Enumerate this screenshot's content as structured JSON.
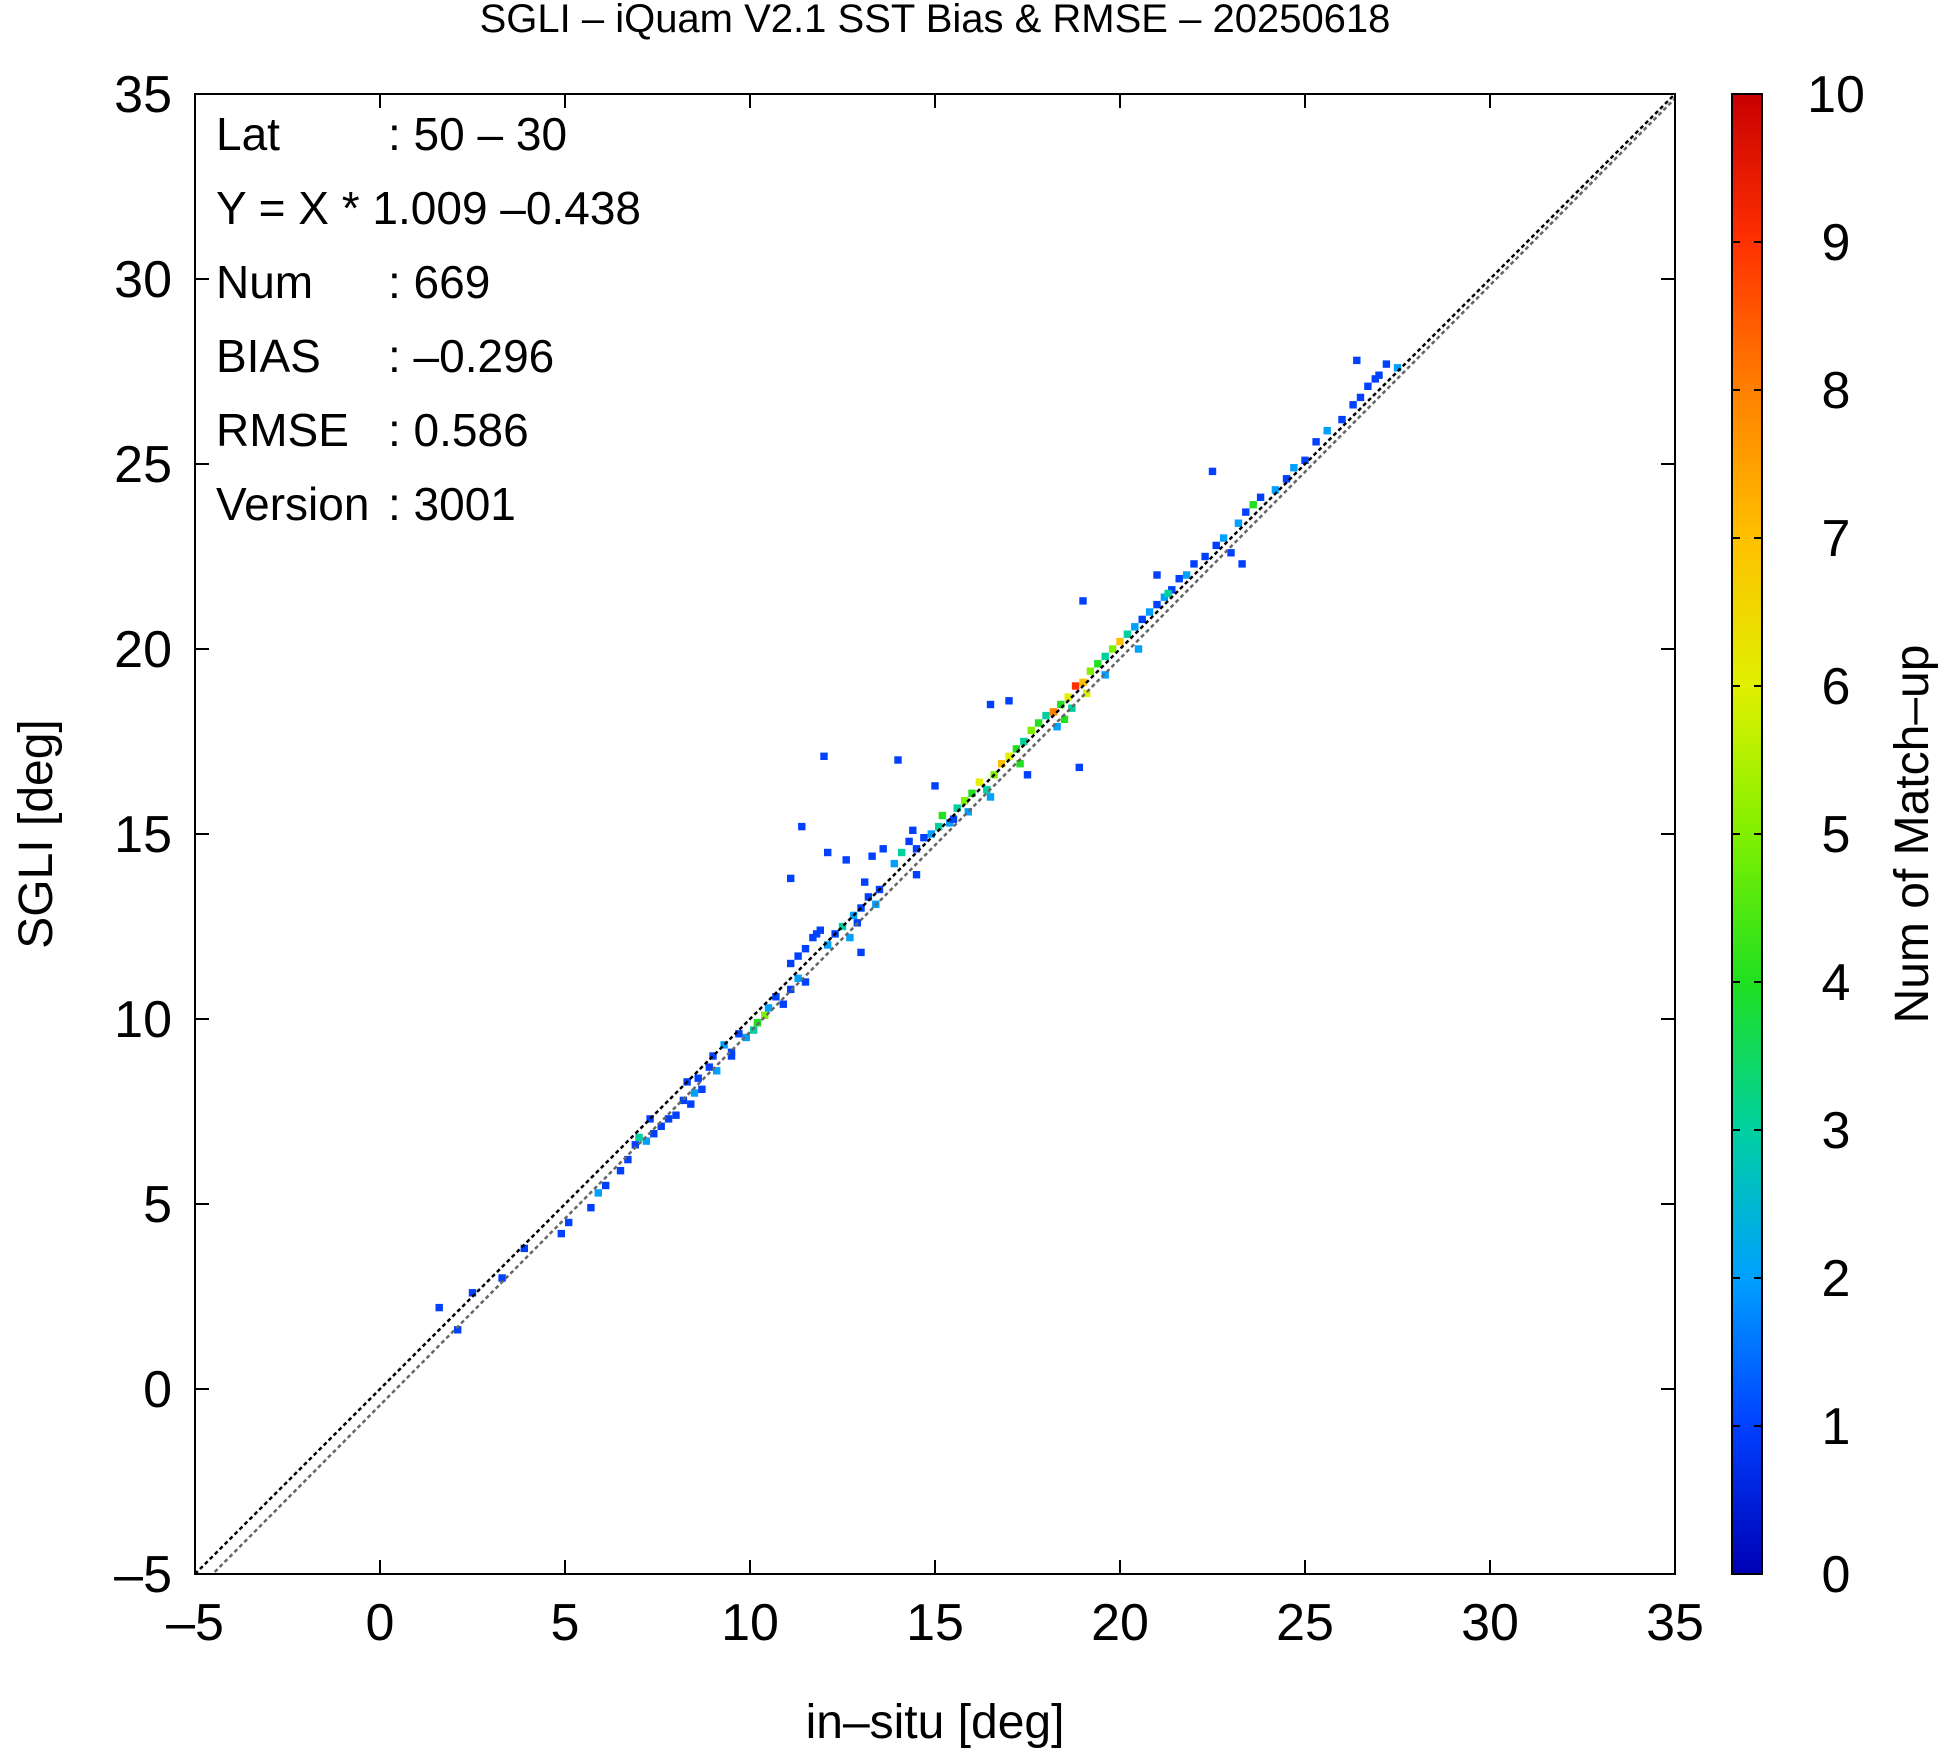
{
  "chart_data": {
    "type": "heatmap",
    "title": "SGLI – iQuam V2.1 SST Bias & RMSE  – 20250618",
    "xlabel": "in–situ [deg]",
    "ylabel": "SGLI [deg]",
    "xlim": [
      -5,
      35
    ],
    "ylim": [
      -5,
      35
    ],
    "xticks": [
      "–5",
      "0",
      "5",
      "10",
      "15",
      "20",
      "25",
      "30",
      "35"
    ],
    "yticks": [
      "–5",
      "0",
      "5",
      "10",
      "15",
      "20",
      "25",
      "30",
      "35"
    ],
    "grid": false,
    "colorbar": {
      "label": "Num of Match–up",
      "range": [
        0,
        10
      ],
      "ticks": [
        "0",
        "1",
        "2",
        "3",
        "4",
        "5",
        "6",
        "7",
        "8",
        "9",
        "10"
      ],
      "colors": [
        "#0000b4",
        "#0040ff",
        "#00a0ff",
        "#00d0a0",
        "#20e020",
        "#80f000",
        "#e0f000",
        "#ffc000",
        "#ff8000",
        "#ff3000",
        "#c80000"
      ]
    },
    "stats": [
      {
        "key": "Lat",
        "value": ": 50 – 30"
      },
      {
        "key": "Y = X * 1.009 –0.438",
        "value": ""
      },
      {
        "key": "Num",
        "value": ": 669"
      },
      {
        "key": "BIAS",
        "value": ": –0.296"
      },
      {
        "key": "RMSE",
        "value": ": 0.586"
      },
      {
        "key": "Version",
        "value": ": 3001"
      }
    ],
    "reference_lines": [
      {
        "slope": 1.0,
        "intercept": 0.0,
        "style": "dotted",
        "color": "#000000"
      },
      {
        "slope": 1.009,
        "intercept": -0.438,
        "style": "dotted",
        "color": "#666666"
      }
    ],
    "cell_size": 0.2,
    "cells": [
      [
        1.6,
        2.2,
        1
      ],
      [
        2.1,
        1.6,
        1
      ],
      [
        2.5,
        2.6,
        1
      ],
      [
        3.3,
        3.0,
        1
      ],
      [
        3.9,
        3.8,
        1
      ],
      [
        4.9,
        4.2,
        1
      ],
      [
        5.1,
        4.5,
        1
      ],
      [
        5.7,
        4.9,
        1
      ],
      [
        5.9,
        5.3,
        2
      ],
      [
        6.1,
        5.5,
        1
      ],
      [
        6.5,
        5.9,
        1
      ],
      [
        6.7,
        6.2,
        1
      ],
      [
        6.9,
        6.6,
        1
      ],
      [
        7.0,
        6.8,
        3
      ],
      [
        7.2,
        6.7,
        2
      ],
      [
        7.4,
        6.9,
        1
      ],
      [
        7.6,
        7.1,
        1
      ],
      [
        7.8,
        7.3,
        1
      ],
      [
        8.0,
        7.4,
        1
      ],
      [
        8.2,
        7.8,
        1
      ],
      [
        8.4,
        7.7,
        1
      ],
      [
        8.5,
        8.0,
        2
      ],
      [
        8.7,
        8.1,
        1
      ],
      [
        8.6,
        8.4,
        1
      ],
      [
        8.9,
        8.7,
        1
      ],
      [
        9.1,
        8.6,
        2
      ],
      [
        9.0,
        9.0,
        1
      ],
      [
        9.3,
        9.3,
        2
      ],
      [
        9.5,
        9.1,
        1
      ],
      [
        9.7,
        9.6,
        1
      ],
      [
        9.9,
        9.5,
        2
      ],
      [
        10.1,
        9.7,
        3
      ],
      [
        10.2,
        9.9,
        4
      ],
      [
        10.4,
        10.1,
        5
      ],
      [
        10.5,
        10.3,
        2
      ],
      [
        10.7,
        10.6,
        1
      ],
      [
        10.9,
        10.4,
        1
      ],
      [
        11.1,
        10.8,
        1
      ],
      [
        11.3,
        11.1,
        2
      ],
      [
        11.5,
        11.0,
        1
      ],
      [
        11.1,
        11.5,
        1
      ],
      [
        11.3,
        11.7,
        1
      ],
      [
        11.5,
        11.9,
        1
      ],
      [
        11.7,
        12.2,
        1
      ],
      [
        11.9,
        12.4,
        1
      ],
      [
        12.1,
        12.0,
        2
      ],
      [
        12.3,
        12.3,
        1
      ],
      [
        12.5,
        12.5,
        3
      ],
      [
        12.7,
        12.2,
        2
      ],
      [
        12.9,
        12.6,
        1
      ],
      [
        12.8,
        12.8,
        2
      ],
      [
        13.0,
        13.0,
        1
      ],
      [
        13.2,
        13.3,
        1
      ],
      [
        13.4,
        13.1,
        2
      ],
      [
        13.5,
        13.5,
        1
      ],
      [
        13.1,
        13.7,
        1
      ],
      [
        12.1,
        14.5,
        1
      ],
      [
        11.4,
        15.2,
        1
      ],
      [
        11.1,
        13.8,
        1
      ],
      [
        12.6,
        14.3,
        1
      ],
      [
        13.3,
        14.4,
        1
      ],
      [
        13.6,
        14.6,
        1
      ],
      [
        13.9,
        14.2,
        2
      ],
      [
        14.1,
        14.5,
        3
      ],
      [
        14.3,
        14.8,
        1
      ],
      [
        14.5,
        14.6,
        1
      ],
      [
        14.7,
        14.9,
        1
      ],
      [
        14.9,
        15.0,
        2
      ],
      [
        15.1,
        15.2,
        3
      ],
      [
        15.2,
        15.5,
        4
      ],
      [
        15.4,
        15.3,
        2
      ],
      [
        15.6,
        15.7,
        3
      ],
      [
        15.8,
        15.9,
        5
      ],
      [
        16.0,
        16.1,
        4
      ],
      [
        16.2,
        16.4,
        6
      ],
      [
        16.4,
        16.2,
        3
      ],
      [
        16.6,
        16.6,
        5
      ],
      [
        16.8,
        16.9,
        7
      ],
      [
        17.0,
        17.1,
        6
      ],
      [
        17.2,
        17.3,
        4
      ],
      [
        17.4,
        17.5,
        3
      ],
      [
        17.6,
        17.8,
        5
      ],
      [
        17.8,
        18.0,
        4
      ],
      [
        18.0,
        18.2,
        3
      ],
      [
        18.2,
        18.3,
        8
      ],
      [
        18.4,
        18.5,
        4
      ],
      [
        18.6,
        18.7,
        6
      ],
      [
        18.8,
        19.0,
        9
      ],
      [
        19.0,
        19.1,
        7
      ],
      [
        19.2,
        19.4,
        5
      ],
      [
        19.4,
        19.6,
        4
      ],
      [
        19.6,
        19.8,
        3
      ],
      [
        19.8,
        20.0,
        5
      ],
      [
        20.0,
        20.2,
        7
      ],
      [
        20.2,
        20.4,
        3
      ],
      [
        20.4,
        20.6,
        2
      ],
      [
        20.6,
        20.8,
        1
      ],
      [
        20.8,
        21.0,
        2
      ],
      [
        21.0,
        21.2,
        1
      ],
      [
        21.2,
        21.4,
        2
      ],
      [
        21.4,
        21.6,
        1
      ],
      [
        21.6,
        21.9,
        1
      ],
      [
        21.8,
        22.0,
        2
      ],
      [
        22.0,
        22.3,
        1
      ],
      [
        22.3,
        22.5,
        1
      ],
      [
        22.6,
        22.8,
        1
      ],
      [
        22.8,
        23.0,
        2
      ],
      [
        23.0,
        22.6,
        1
      ],
      [
        23.2,
        23.4,
        2
      ],
      [
        23.4,
        23.7,
        1
      ],
      [
        23.6,
        23.9,
        4
      ],
      [
        23.8,
        24.1,
        1
      ],
      [
        24.2,
        24.3,
        2
      ],
      [
        24.5,
        24.6,
        1
      ],
      [
        24.7,
        24.9,
        2
      ],
      [
        25.0,
        25.1,
        1
      ],
      [
        25.3,
        25.6,
        1
      ],
      [
        25.6,
        25.9,
        2
      ],
      [
        26.0,
        26.2,
        1
      ],
      [
        26.3,
        26.6,
        1
      ],
      [
        26.5,
        26.8,
        1
      ],
      [
        26.7,
        27.1,
        1
      ],
      [
        27.0,
        27.4,
        1
      ],
      [
        27.2,
        27.7,
        1
      ],
      [
        26.4,
        27.8,
        1
      ],
      [
        26.9,
        27.3,
        1
      ],
      [
        27.5,
        27.6,
        2
      ],
      [
        22.5,
        24.8,
        1
      ],
      [
        23.3,
        22.3,
        1
      ],
      [
        21.0,
        22.0,
        1
      ],
      [
        19.0,
        21.3,
        1
      ],
      [
        18.9,
        16.8,
        1
      ],
      [
        17.0,
        18.6,
        1
      ],
      [
        16.5,
        18.5,
        1
      ],
      [
        15.0,
        16.3,
        1
      ],
      [
        14.5,
        13.9,
        1
      ],
      [
        13.0,
        11.8,
        1
      ],
      [
        12.0,
        17.1,
        1
      ],
      [
        14.0,
        17.0,
        1
      ],
      [
        17.5,
        16.6,
        1
      ],
      [
        18.3,
        17.9,
        2
      ],
      [
        18.5,
        18.1,
        4
      ],
      [
        19.1,
        18.8,
        6
      ],
      [
        16.5,
        16.0,
        2
      ],
      [
        15.5,
        15.4,
        1
      ],
      [
        17.3,
        16.9,
        4
      ],
      [
        20.5,
        20.0,
        2
      ],
      [
        21.3,
        21.5,
        3
      ],
      [
        9.5,
        9.0,
        1
      ],
      [
        8.3,
        8.3,
        1
      ],
      [
        7.3,
        7.3,
        1
      ],
      [
        11.8,
        12.3,
        1
      ],
      [
        14.4,
        15.1,
        1
      ],
      [
        19.6,
        19.3,
        2
      ],
      [
        18.7,
        18.4,
        3
      ],
      [
        15.9,
        15.6,
        2
      ]
    ]
  }
}
